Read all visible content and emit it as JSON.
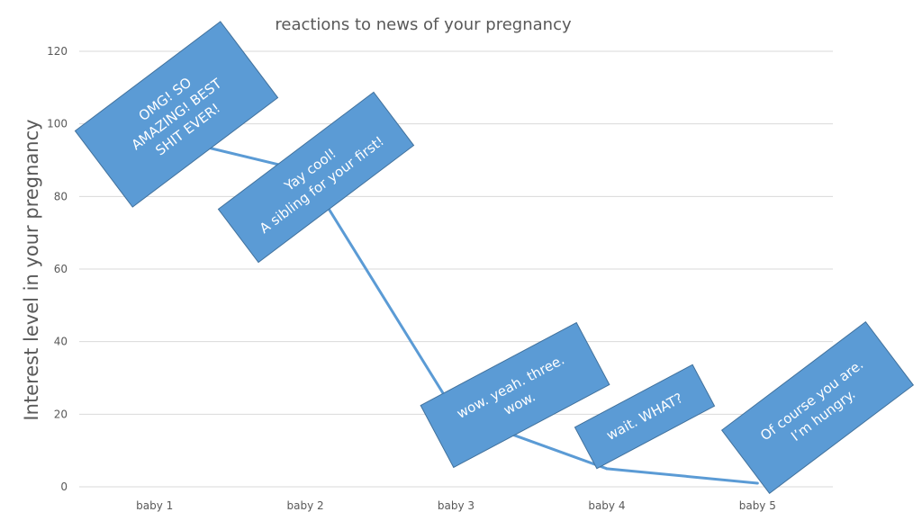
{
  "chart_data": {
    "type": "line",
    "title": "reactions to news of your pregnancy",
    "xlabel": "",
    "ylabel": "Interest level in your pregnancy",
    "categories": [
      "baby 1",
      "baby 2",
      "baby 3",
      "baby 4",
      "baby 5"
    ],
    "ylim": [
      0,
      120
    ],
    "yticks": [
      "0",
      "20",
      "40",
      "60",
      "80",
      "100",
      "120"
    ],
    "grid": true,
    "legend": "none",
    "series": [
      {
        "values": [
          97,
          87,
          20,
          5,
          1
        ],
        "color": "#5b9bd5"
      }
    ],
    "annotations": [
      {
        "point": 0,
        "lines": [
          "OMG! SO",
          "AMAZING! BEST",
          "SHIT EVER!"
        ]
      },
      {
        "point": 1,
        "lines": [
          "Yay cool!",
          "A sibling for your first!"
        ]
      },
      {
        "point": 2,
        "lines": [
          "wow. yeah. three.",
          "wow."
        ]
      },
      {
        "point": 3,
        "lines": [
          "wait. WHAT?"
        ]
      },
      {
        "point": 4,
        "lines": [
          "Of course you are.",
          "I’m hungry."
        ]
      }
    ],
    "annotation_color": "#5b9bd5",
    "annotation_border": "#41719c"
  }
}
